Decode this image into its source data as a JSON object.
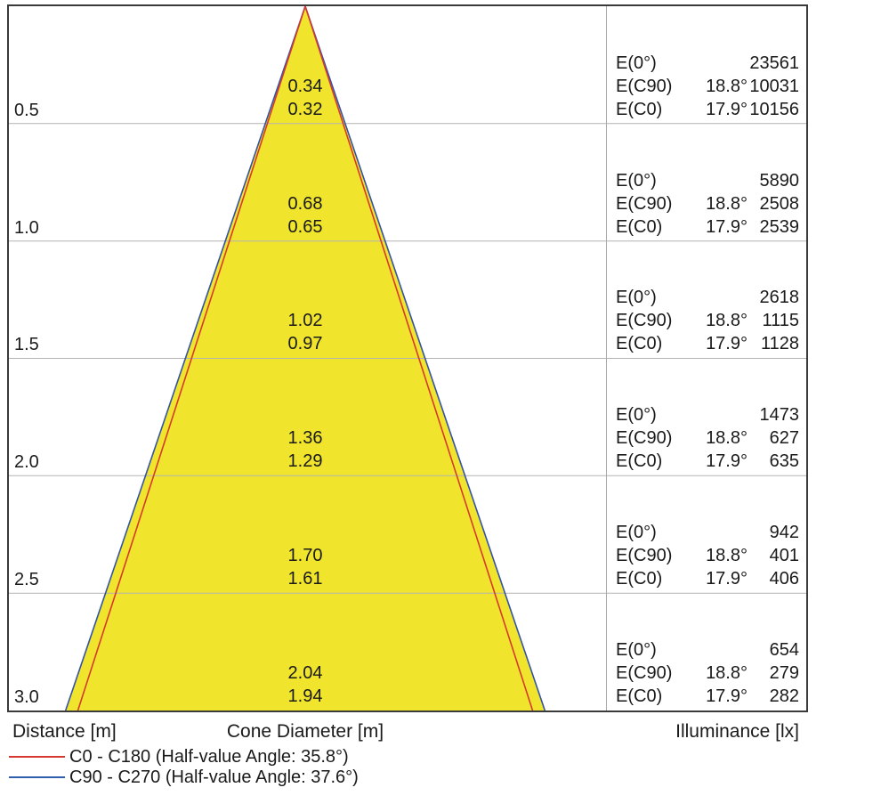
{
  "footer": {
    "distance_label": "Distance [m]",
    "cone_label": "Cone Diameter [m]",
    "illuminance_label": "Illuminance [lx]"
  },
  "e_labels": {
    "e0": "E(0°)",
    "ec90": "E(C90)",
    "ec0": "E(C0)"
  },
  "legend": {
    "items": [
      {
        "label": "C0 - C180 (Half-value Angle: 35.8°)",
        "color": "#d6392f"
      },
      {
        "label": "C90 - C270 (Half-value Angle: 37.6°)",
        "color": "#2f5fac"
      }
    ]
  },
  "chart_data": {
    "type": "cone-diagram",
    "description": "Luminaire light-cone diagram: cone diameter and illuminance versus distance",
    "distance_unit": "m",
    "illuminance_unit": "lx",
    "half_value_angle_c0_c180_deg": 35.8,
    "half_value_angle_c90_c270_deg": 37.6,
    "beam_angle_c90_deg": "18.8°",
    "beam_angle_c0_deg": "17.9°",
    "rows": [
      {
        "distance": "0.5",
        "cone_d_c90": "0.34",
        "cone_d_c0": "0.32",
        "e0": "23561",
        "c90_angle": "18.8°",
        "ec90": "10031",
        "c0_angle": "17.9°",
        "ec0": "10156"
      },
      {
        "distance": "1.0",
        "cone_d_c90": "0.68",
        "cone_d_c0": "0.65",
        "e0": "5890",
        "c90_angle": "18.8°",
        "ec90": "2508",
        "c0_angle": "17.9°",
        "ec0": "2539"
      },
      {
        "distance": "1.5",
        "cone_d_c90": "1.02",
        "cone_d_c0": "0.97",
        "e0": "2618",
        "c90_angle": "18.8°",
        "ec90": "1115",
        "c0_angle": "17.9°",
        "ec0": "1128"
      },
      {
        "distance": "2.0",
        "cone_d_c90": "1.36",
        "cone_d_c0": "1.29",
        "e0": "1473",
        "c90_angle": "18.8°",
        "ec90": "627",
        "c0_angle": "17.9°",
        "ec0": "635"
      },
      {
        "distance": "2.5",
        "cone_d_c90": "1.70",
        "cone_d_c0": "1.61",
        "e0": "942",
        "c90_angle": "18.8°",
        "ec90": "401",
        "c0_angle": "17.9°",
        "ec0": "406"
      },
      {
        "distance": "3.0",
        "cone_d_c90": "2.04",
        "cone_d_c0": "1.94",
        "e0": "654",
        "c90_angle": "18.8°",
        "ec90": "279",
        "c0_angle": "17.9°",
        "ec0": "282"
      }
    ],
    "colors": {
      "cone_fill": "#f0e52c",
      "c0_line": "#d6392f",
      "c90_line": "#3453a6",
      "grid": "#b3b3b3",
      "frame": "#3a3a3a"
    },
    "layout": {
      "grid": "on",
      "legend_position": "bottom-left"
    }
  }
}
